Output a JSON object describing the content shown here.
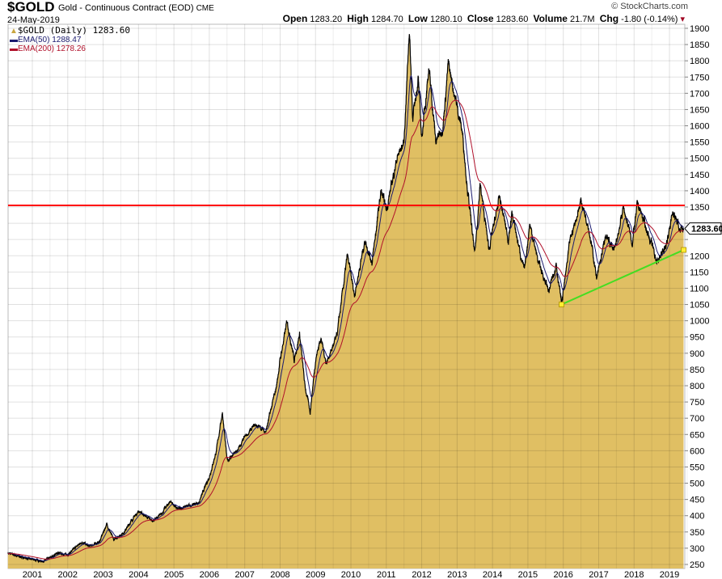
{
  "header": {
    "symbol": "$GOLD",
    "description": "Gold - Continuous Contract (EOD)",
    "exchange": "CME",
    "date": "24-May-2019",
    "brand": "© StockCharts.com",
    "quote": {
      "open_label": "Open",
      "open": "1283.20",
      "high_label": "High",
      "high": "1284.70",
      "low_label": "Low",
      "low": "1280.10",
      "close_label": "Close",
      "close": "1283.60",
      "volume_label": "Volume",
      "volume": "21.7M",
      "chg_label": "Chg",
      "chg": "-1.80 (-0.14%)"
    }
  },
  "legend": {
    "price": "$GOLD (Daily) 1283.60",
    "ema50": "EMA(50) 1288.47",
    "ema200": "EMA(200) 1278.26"
  },
  "colors": {
    "fill": "#e0bf63",
    "price": "#000000",
    "ema50": "#1a1a6e",
    "ema200": "#b0102a",
    "resistance": "#ff0000",
    "trend": "#44dd22",
    "marker": "#ffee33"
  },
  "chart_data": {
    "type": "area",
    "title": "$GOLD Gold - Continuous Contract (EOD)",
    "ylim": [
      250,
      1900
    ],
    "ytick_step": 50,
    "xlim": [
      2000.31,
      2019.4
    ],
    "x_ticks": [
      "2001",
      "2002",
      "2003",
      "2004",
      "2005",
      "2006",
      "2007",
      "2008",
      "2009",
      "2010",
      "2011",
      "2012",
      "2013",
      "2014",
      "2015",
      "2016",
      "2017",
      "2018",
      "2019"
    ],
    "last_value_label": "1283.60",
    "grid": true,
    "series_points": [
      [
        2000.31,
        285
      ],
      [
        2000.6,
        275
      ],
      [
        2001.0,
        265
      ],
      [
        2001.3,
        260
      ],
      [
        2001.5,
        270
      ],
      [
        2001.7,
        285
      ],
      [
        2002.0,
        280
      ],
      [
        2002.4,
        320
      ],
      [
        2002.6,
        305
      ],
      [
        2002.9,
        320
      ],
      [
        2003.1,
        375
      ],
      [
        2003.3,
        325
      ],
      [
        2003.6,
        350
      ],
      [
        2003.8,
        385
      ],
      [
        2004.0,
        415
      ],
      [
        2004.3,
        390
      ],
      [
        2004.4,
        385
      ],
      [
        2004.6,
        400
      ],
      [
        2004.9,
        445
      ],
      [
        2005.1,
        420
      ],
      [
        2005.4,
        430
      ],
      [
        2005.7,
        440
      ],
      [
        2006.0,
        520
      ],
      [
        2006.2,
        600
      ],
      [
        2006.37,
        720
      ],
      [
        2006.5,
        570
      ],
      [
        2006.8,
        600
      ],
      [
        2007.0,
        640
      ],
      [
        2007.3,
        680
      ],
      [
        2007.6,
        660
      ],
      [
        2007.9,
        800
      ],
      [
        2008.0,
        880
      ],
      [
        2008.2,
        1000
      ],
      [
        2008.4,
        880
      ],
      [
        2008.55,
        960
      ],
      [
        2008.7,
        800
      ],
      [
        2008.85,
        720
      ],
      [
        2009.0,
        880
      ],
      [
        2009.15,
        950
      ],
      [
        2009.3,
        870
      ],
      [
        2009.6,
        950
      ],
      [
        2009.9,
        1200
      ],
      [
        2010.1,
        1080
      ],
      [
        2010.4,
        1250
      ],
      [
        2010.6,
        1180
      ],
      [
        2010.85,
        1400
      ],
      [
        2011.0,
        1340
      ],
      [
        2011.3,
        1500
      ],
      [
        2011.5,
        1550
      ],
      [
        2011.65,
        1900
      ],
      [
        2011.75,
        1620
      ],
      [
        2011.9,
        1750
      ],
      [
        2012.0,
        1560
      ],
      [
        2012.2,
        1780
      ],
      [
        2012.4,
        1550
      ],
      [
        2012.6,
        1600
      ],
      [
        2012.75,
        1790
      ],
      [
        2013.0,
        1660
      ],
      [
        2013.15,
        1580
      ],
      [
        2013.3,
        1400
      ],
      [
        2013.5,
        1200
      ],
      [
        2013.65,
        1420
      ],
      [
        2013.9,
        1220
      ],
      [
        2014.2,
        1380
      ],
      [
        2014.45,
        1250
      ],
      [
        2014.55,
        1330
      ],
      [
        2014.9,
        1150
      ],
      [
        2015.05,
        1300
      ],
      [
        2015.3,
        1180
      ],
      [
        2015.6,
        1090
      ],
      [
        2015.8,
        1180
      ],
      [
        2015.95,
        1050
      ],
      [
        2016.2,
        1250
      ],
      [
        2016.5,
        1370
      ],
      [
        2016.7,
        1300
      ],
      [
        2016.95,
        1130
      ],
      [
        2017.2,
        1260
      ],
      [
        2017.45,
        1215
      ],
      [
        2017.7,
        1350
      ],
      [
        2017.95,
        1240
      ],
      [
        2018.1,
        1360
      ],
      [
        2018.3,
        1300
      ],
      [
        2018.6,
        1200
      ],
      [
        2018.65,
        1180
      ],
      [
        2018.9,
        1230
      ],
      [
        2019.1,
        1340
      ],
      [
        2019.3,
        1275
      ],
      [
        2019.4,
        1283.6
      ]
    ],
    "annotations": {
      "resistance_level": 1355,
      "trendline": [
        [
          2015.95,
          1050
        ],
        [
          2019.4,
          1218
        ]
      ]
    }
  }
}
